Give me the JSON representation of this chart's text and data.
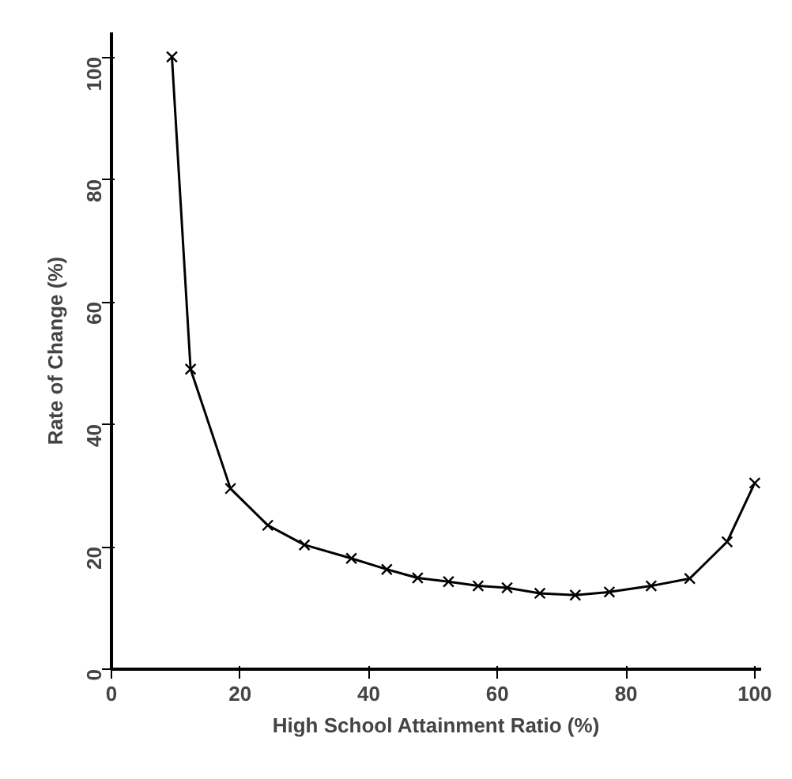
{
  "chart_data": {
    "type": "line",
    "xlabel": "High School Attainment Ratio (%)",
    "ylabel": "Rate of Change (%)",
    "x": [
      9.4,
      12.3,
      18.5,
      24.3,
      30,
      37.3,
      42.8,
      47.6,
      52.4,
      57,
      61.5,
      66.6,
      72.1,
      77.4,
      83.9,
      89.9,
      95.7,
      100
    ],
    "series": [
      {
        "color": "#000000",
        "values": [
          100,
          49,
          29.5,
          23.5,
          20.3,
          18.1,
          16.3,
          14.9,
          14.3,
          13.6,
          13.3,
          12.4,
          12.1,
          12.6,
          13.6,
          14.8,
          20.8,
          30.4
        ]
      }
    ],
    "xlim": [
      0,
      101
    ],
    "ylim": [
      0,
      104
    ],
    "xticks": [
      0,
      20,
      40,
      60,
      80,
      100
    ],
    "yticks": [
      0,
      20,
      40,
      60,
      80,
      100
    ],
    "grid": false,
    "marker": "cross",
    "line_style": "solid"
  }
}
